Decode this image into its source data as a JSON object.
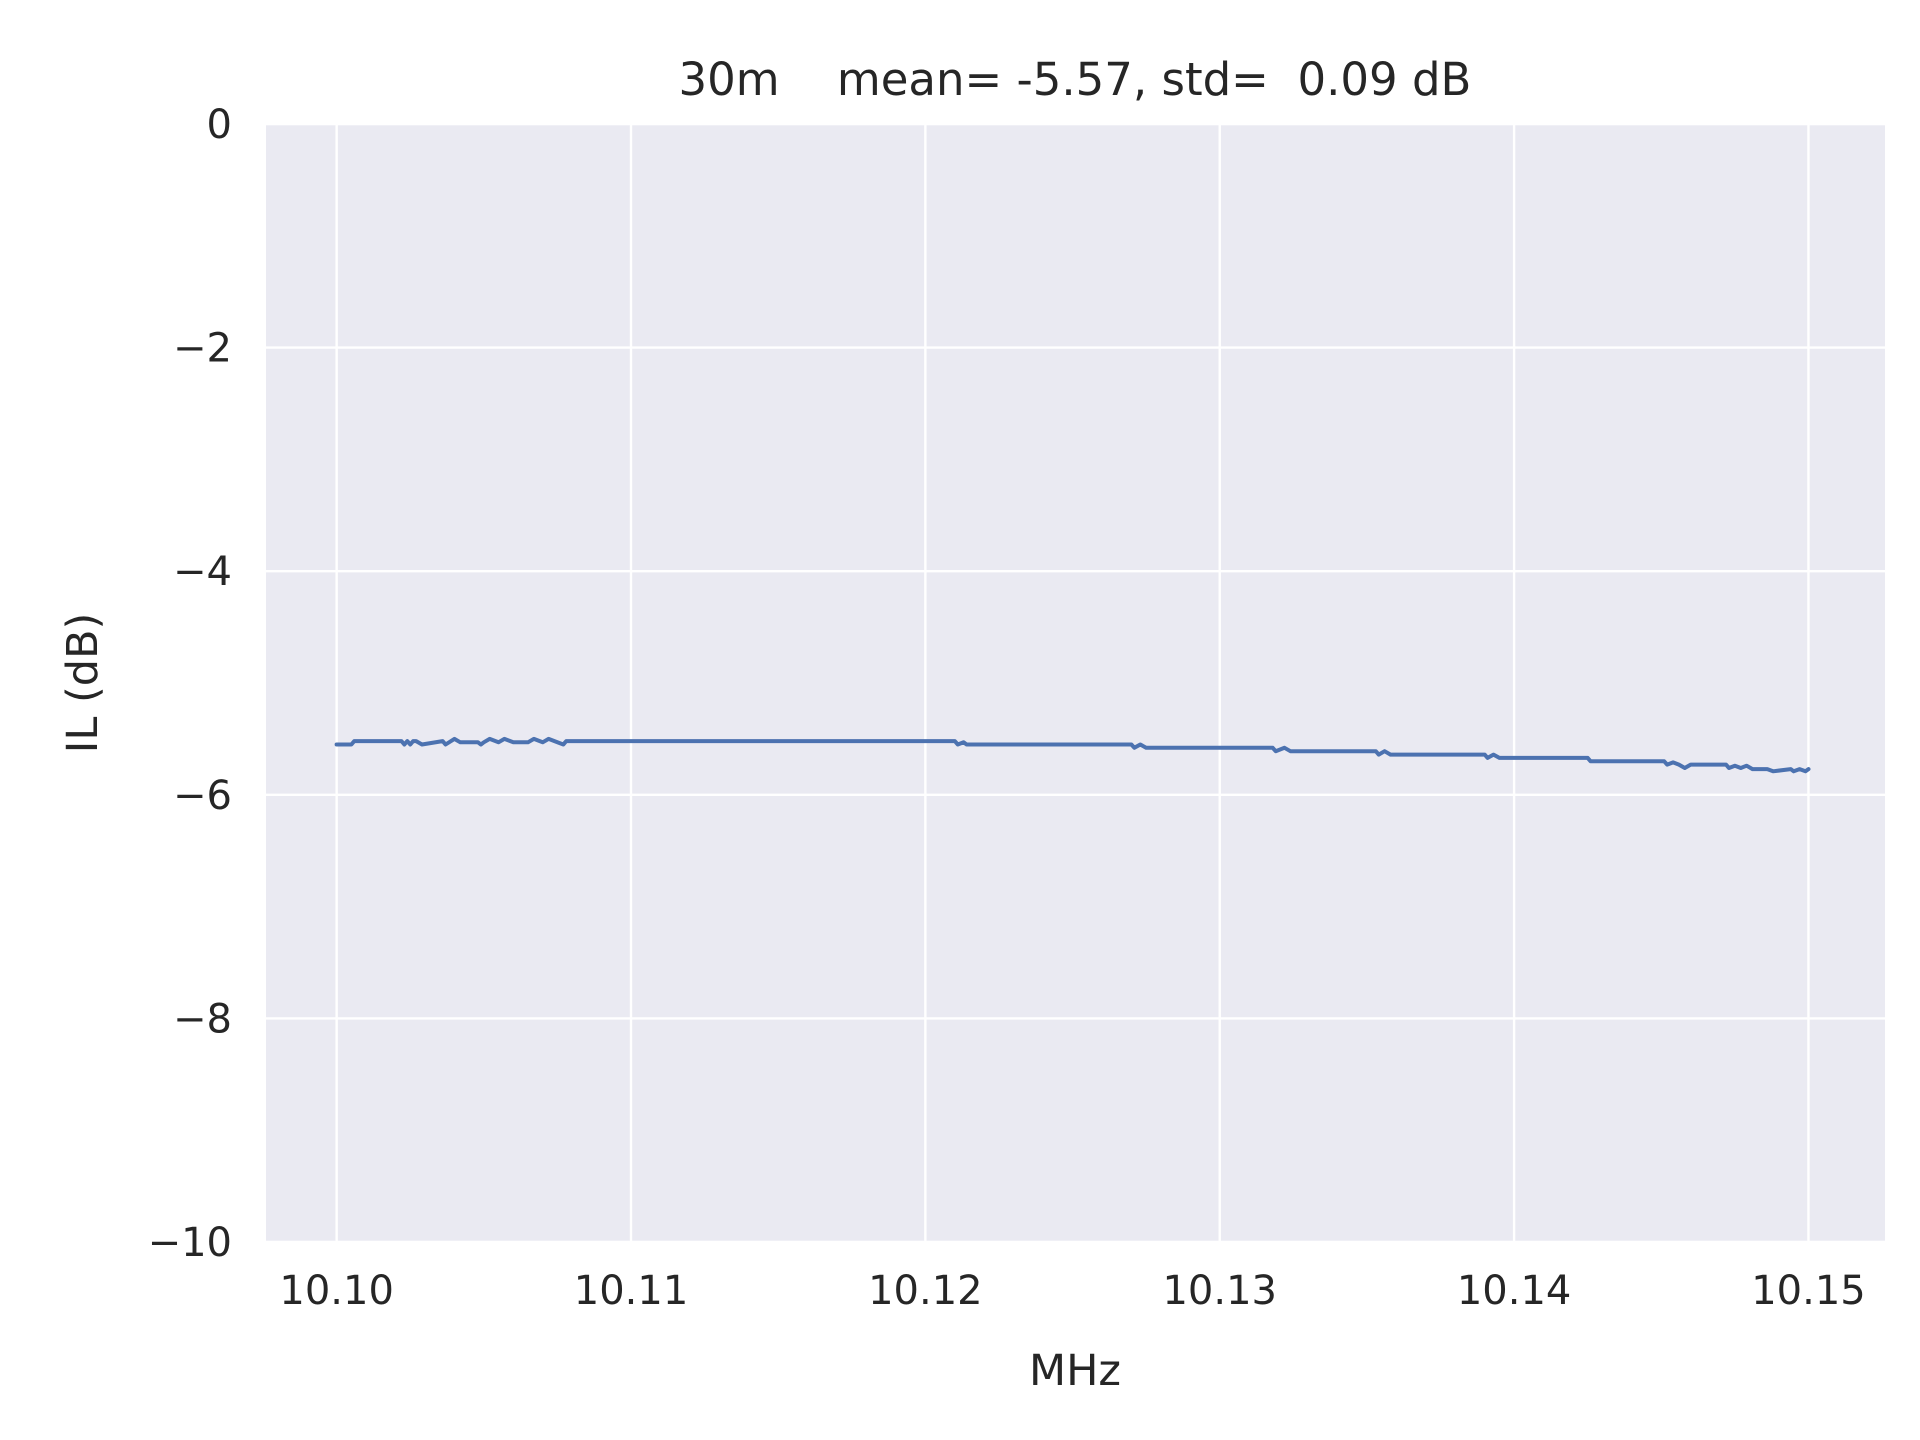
{
  "chart_data": {
    "type": "line",
    "title": "30m    mean= -5.57, std=  0.09 dB",
    "xlabel": "MHz",
    "ylabel": "IL (dB)",
    "xlim": [
      10.0976,
      10.1526
    ],
    "ylim": [
      -10,
      0
    ],
    "xticks": [
      10.1,
      10.11,
      10.12,
      10.13,
      10.14,
      10.15
    ],
    "xtick_labels": [
      "10.10",
      "10.11",
      "10.12",
      "10.13",
      "10.14",
      "10.15"
    ],
    "yticks": [
      0,
      -2,
      -4,
      -6,
      -8,
      -10
    ],
    "ytick_labels": [
      "0",
      "−2",
      "−4",
      "−6",
      "−8",
      "−10"
    ],
    "grid": true,
    "colors": {
      "background": "#eaeaf2",
      "grid": "#ffffff",
      "line": "#4c72b0",
      "text": "#262626"
    },
    "series": [
      {
        "name": "IL",
        "x": [
          10.1,
          10.1005,
          10.1006,
          10.1022,
          10.1023,
          10.1024,
          10.1025,
          10.1026,
          10.1027,
          10.1029,
          10.1036,
          10.1037,
          10.104,
          10.1042,
          10.1048,
          10.1049,
          10.105,
          10.1052,
          10.1055,
          10.1057,
          10.106,
          10.1065,
          10.1067,
          10.107,
          10.1072,
          10.1075,
          10.1077,
          10.1078,
          10.121,
          10.1211,
          10.1213,
          10.1214,
          10.127,
          10.1271,
          10.1273,
          10.1275,
          10.1276,
          10.1318,
          10.1319,
          10.1322,
          10.1324,
          10.1353,
          10.1354,
          10.1356,
          10.1358,
          10.139,
          10.1391,
          10.1393,
          10.1395,
          10.1396,
          10.1425,
          10.1426,
          10.1451,
          10.1452,
          10.1454,
          10.1456,
          10.1458,
          10.146,
          10.1472,
          10.1473,
          10.1475,
          10.1477,
          10.1479,
          10.1481,
          10.1486,
          10.1488,
          10.1494,
          10.1495,
          10.1497,
          10.1499,
          10.15
        ],
        "y": [
          -5.55,
          -5.55,
          -5.52,
          -5.52,
          -5.55,
          -5.52,
          -5.55,
          -5.52,
          -5.52,
          -5.55,
          -5.52,
          -5.55,
          -5.5,
          -5.53,
          -5.53,
          -5.55,
          -5.53,
          -5.5,
          -5.53,
          -5.5,
          -5.53,
          -5.53,
          -5.5,
          -5.53,
          -5.5,
          -5.53,
          -5.55,
          -5.52,
          -5.52,
          -5.55,
          -5.53,
          -5.55,
          -5.55,
          -5.58,
          -5.55,
          -5.58,
          -5.58,
          -5.58,
          -5.61,
          -5.58,
          -5.61,
          -5.61,
          -5.64,
          -5.61,
          -5.64,
          -5.64,
          -5.67,
          -5.64,
          -5.67,
          -5.67,
          -5.67,
          -5.7,
          -5.7,
          -5.73,
          -5.71,
          -5.73,
          -5.76,
          -5.73,
          -5.73,
          -5.76,
          -5.74,
          -5.76,
          -5.74,
          -5.77,
          -5.77,
          -5.79,
          -5.77,
          -5.79,
          -5.77,
          -5.79,
          -5.77
        ]
      }
    ]
  }
}
